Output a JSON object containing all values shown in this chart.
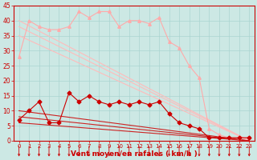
{
  "background_color": "#cce8e4",
  "grid_color": "#aad4d0",
  "xlabel": "Vent moyen/en rafales ( km/h )",
  "xlabel_color": "#cc0000",
  "xlabel_fontsize": 6.5,
  "tick_color": "#cc0000",
  "xlim": [
    -0.5,
    23.5
  ],
  "ylim": [
    0,
    45
  ],
  "yticks": [
    0,
    5,
    10,
    15,
    20,
    25,
    30,
    35,
    40,
    45
  ],
  "xticks": [
    0,
    1,
    2,
    3,
    4,
    5,
    6,
    7,
    8,
    9,
    10,
    11,
    12,
    13,
    14,
    15,
    16,
    17,
    18,
    19,
    20,
    21,
    22,
    23
  ],
  "series": [
    {
      "x": [
        0,
        1,
        2,
        3,
        4,
        5,
        6,
        7,
        8,
        9,
        10,
        11,
        12,
        13,
        14,
        15,
        16,
        17,
        18,
        19,
        20,
        21,
        22,
        23
      ],
      "y": [
        28,
        40,
        38,
        37,
        37,
        38,
        43,
        41,
        43,
        43,
        38,
        40,
        40,
        39,
        41,
        33,
        31,
        25,
        21,
        4,
        2,
        1,
        1,
        1
      ],
      "color": "#ffaaaa",
      "marker": "^",
      "markersize": 2.5,
      "linewidth": 0.8,
      "zorder": 3
    },
    {
      "x": [
        0,
        23
      ],
      "y": [
        40,
        0
      ],
      "color": "#ffbbbb",
      "marker": null,
      "markersize": 0,
      "linewidth": 0.8,
      "zorder": 2
    },
    {
      "x": [
        0,
        23
      ],
      "y": [
        38,
        0
      ],
      "color": "#ffbbbb",
      "marker": null,
      "markersize": 0,
      "linewidth": 0.8,
      "zorder": 2
    },
    {
      "x": [
        0,
        23
      ],
      "y": [
        35,
        0
      ],
      "color": "#ffbbbb",
      "marker": null,
      "markersize": 0,
      "linewidth": 0.8,
      "zorder": 2
    },
    {
      "x": [
        0,
        1,
        2,
        3,
        4,
        5,
        6,
        7,
        8,
        9,
        10,
        11,
        12,
        13,
        14,
        15,
        16,
        17,
        18,
        19,
        20,
        21,
        22,
        23
      ],
      "y": [
        7,
        10,
        13,
        6,
        6,
        16,
        13,
        15,
        13,
        12,
        13,
        12,
        13,
        12,
        13,
        9,
        6,
        5,
        4,
        1,
        1,
        1,
        1,
        1
      ],
      "color": "#cc0000",
      "marker": "D",
      "markersize": 2.5,
      "linewidth": 0.8,
      "zorder": 4
    },
    {
      "x": [
        0,
        23
      ],
      "y": [
        10,
        0
      ],
      "color": "#cc2222",
      "marker": null,
      "markersize": 0,
      "linewidth": 0.8,
      "zorder": 2
    },
    {
      "x": [
        0,
        23
      ],
      "y": [
        8,
        0
      ],
      "color": "#cc2222",
      "marker": null,
      "markersize": 0,
      "linewidth": 0.8,
      "zorder": 2
    },
    {
      "x": [
        0,
        23
      ],
      "y": [
        6,
        0
      ],
      "color": "#cc2222",
      "marker": null,
      "markersize": 0,
      "linewidth": 0.8,
      "zorder": 2
    }
  ],
  "arrow_color": "#cc0000"
}
